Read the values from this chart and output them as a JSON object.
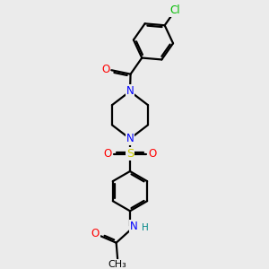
{
  "bg_color": "#ebebeb",
  "atom_colors": {
    "C": "#000000",
    "N": "#0000ff",
    "O": "#ff0000",
    "S": "#cccc00",
    "Cl": "#00bb00",
    "H": "#008888"
  },
  "bond_color": "#000000",
  "bond_width": 1.6,
  "font_size_atom": 8.5
}
